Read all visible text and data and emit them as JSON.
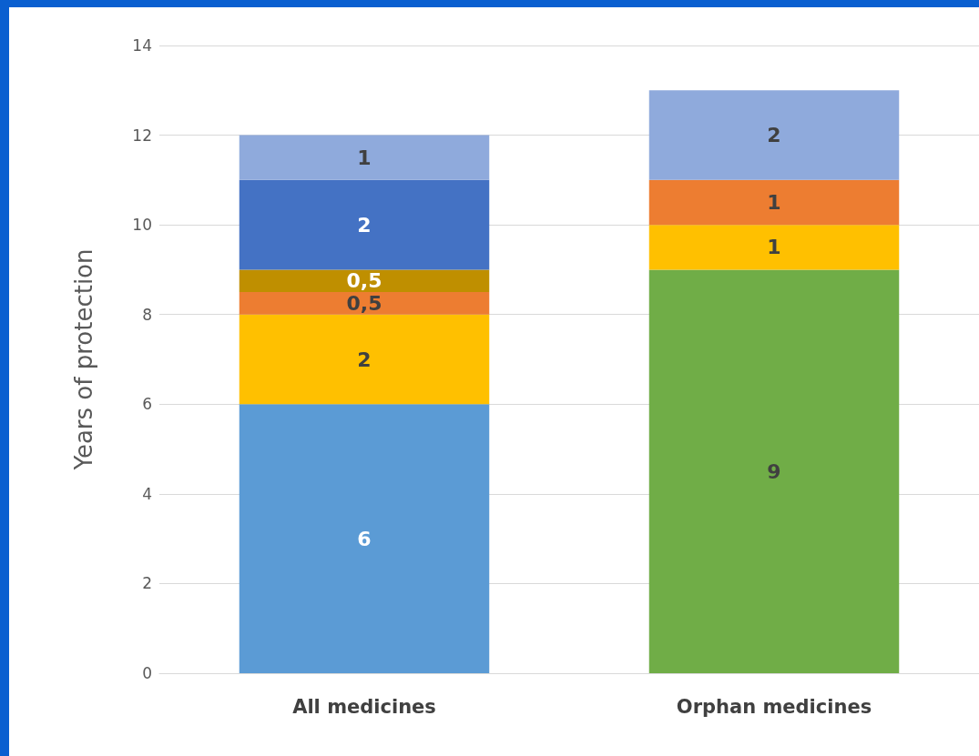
{
  "chart_data": {
    "type": "bar",
    "stacked": true,
    "ylabel": "Years of protection",
    "categories": [
      "All medicines",
      "Orphan medicines"
    ],
    "ylim": [
      0,
      14
    ],
    "yticks": [
      0,
      2,
      4,
      6,
      8,
      10,
      12,
      14
    ],
    "grid": "y",
    "series": [
      {
        "color": "#5b9bd5",
        "values": [
          6,
          null
        ],
        "value_labels": [
          "6",
          null
        ]
      },
      {
        "color": "#70ad47",
        "values": [
          null,
          9
        ],
        "value_labels": [
          null,
          "9"
        ]
      },
      {
        "color": "#ffc000",
        "values": [
          2,
          1
        ],
        "value_labels": [
          "2",
          "1"
        ]
      },
      {
        "color": "#ed7d31",
        "values": [
          0.5,
          1
        ],
        "value_labels": [
          "0,5",
          "1"
        ]
      },
      {
        "color": "#bf8f00",
        "values": [
          0.5,
          null
        ],
        "value_labels": [
          "0,5",
          null
        ]
      },
      {
        "color": "#4472c4",
        "values": [
          2,
          null
        ],
        "value_labels": [
          "2",
          null
        ]
      },
      {
        "color": "#8faadc",
        "values": [
          1,
          2
        ],
        "value_labels": [
          "1",
          "2"
        ]
      }
    ]
  }
}
